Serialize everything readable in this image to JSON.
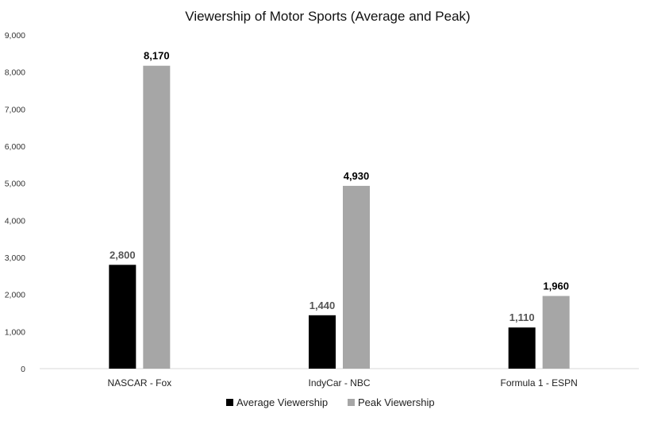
{
  "chart_data": {
    "type": "bar",
    "title": "Viewership of Motor Sports (Average and Peak)",
    "categories": [
      "NASCAR - Fox",
      "IndyCar - NBC",
      "Formula 1 - ESPN"
    ],
    "series": [
      {
        "name": "Average Viewership",
        "values": [
          2800,
          1440,
          1110
        ],
        "labels": [
          "2,800",
          "1,440",
          "1,110"
        ],
        "color": "#000000",
        "label_color": "#555555"
      },
      {
        "name": "Peak Viewership",
        "values": [
          8170,
          4930,
          1960
        ],
        "labels": [
          "8,170",
          "4,930",
          "1,960"
        ],
        "color": "#a6a6a6",
        "label_color": "#000000"
      }
    ],
    "ylim": [
      0,
      9000
    ],
    "y_ticks": [
      0,
      1000,
      2000,
      3000,
      4000,
      5000,
      6000,
      7000,
      8000,
      9000
    ],
    "y_tick_labels": [
      "0",
      "1,000",
      "2,000",
      "3,000",
      "4,000",
      "5,000",
      "6,000",
      "7,000",
      "8,000",
      "9,000"
    ],
    "xlabel": "",
    "ylabel": "",
    "grid": false,
    "legend_position": "bottom"
  }
}
